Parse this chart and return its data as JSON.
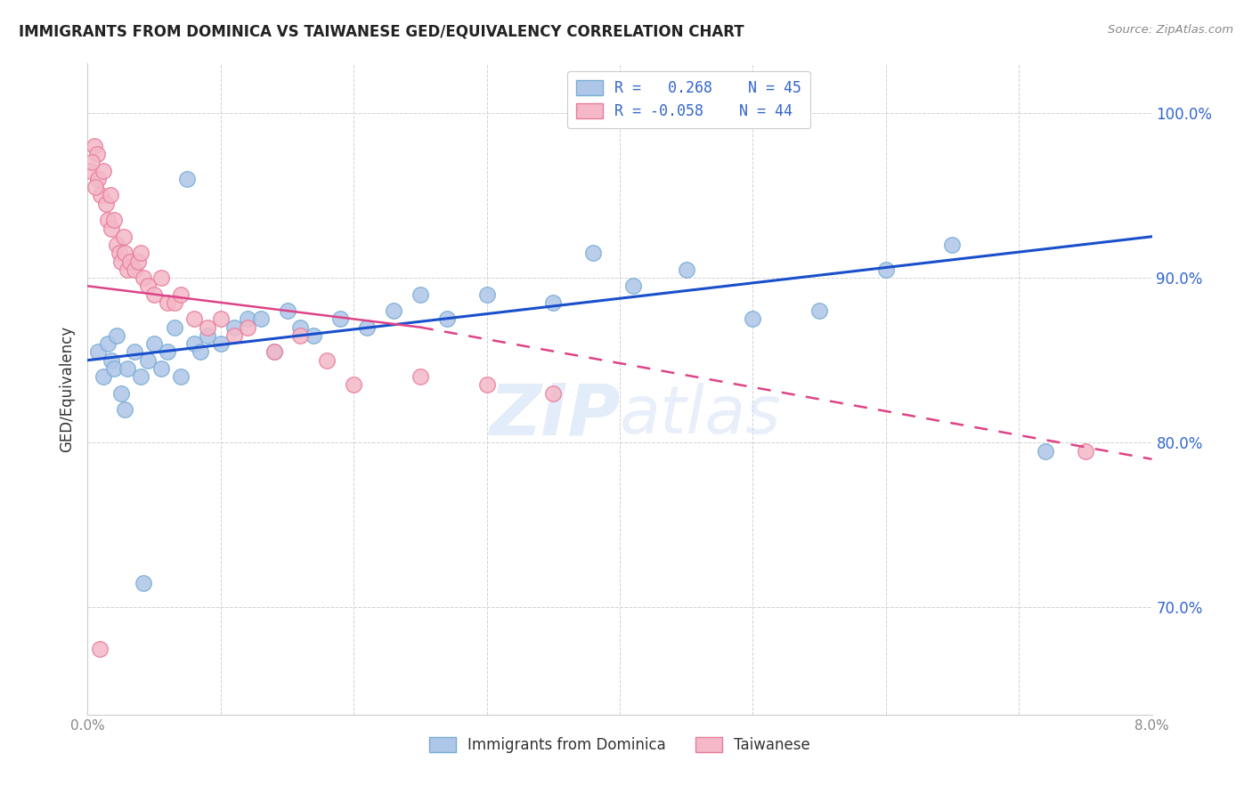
{
  "title": "IMMIGRANTS FROM DOMINICA VS TAIWANESE GED/EQUIVALENCY CORRELATION CHART",
  "source": "Source: ZipAtlas.com",
  "ylabel": "GED/Equivalency",
  "yticks": [
    70.0,
    80.0,
    90.0,
    100.0
  ],
  "ytick_labels": [
    "70.0%",
    "80.0%",
    "90.0%",
    "100.0%"
  ],
  "xlim": [
    0.0,
    8.0
  ],
  "ylim": [
    63.5,
    103.0
  ],
  "legend_labels": [
    "Immigrants from Dominica",
    "Taiwanese"
  ],
  "blue_color": "#aec6e8",
  "pink_color": "#f4b8c8",
  "blue_edge": "#7aadd4",
  "pink_edge": "#e87d9b",
  "trend_blue": "#1a4fcc",
  "trend_pink": "#dd4488",
  "watermark": "ZIPatlas",
  "watermark_color": "#ccddf5",
  "blue_scatter_x": [
    0.08,
    0.12,
    0.15,
    0.18,
    0.2,
    0.22,
    0.25,
    0.28,
    0.3,
    0.35,
    0.4,
    0.45,
    0.5,
    0.55,
    0.6,
    0.65,
    0.7,
    0.8,
    0.85,
    0.9,
    1.0,
    1.1,
    1.2,
    1.3,
    1.4,
    1.5,
    1.6,
    1.7,
    1.9,
    2.1,
    2.3,
    2.5,
    2.7,
    3.0,
    3.5,
    3.8,
    4.1,
    4.5,
    5.0,
    5.5,
    6.0,
    6.5,
    7.2,
    0.42,
    0.75
  ],
  "blue_scatter_y": [
    85.5,
    84.0,
    86.0,
    85.0,
    84.5,
    86.5,
    83.0,
    82.0,
    84.5,
    85.5,
    84.0,
    85.0,
    86.0,
    84.5,
    85.5,
    87.0,
    84.0,
    86.0,
    85.5,
    86.5,
    86.0,
    87.0,
    87.5,
    87.5,
    85.5,
    88.0,
    87.0,
    86.5,
    87.5,
    87.0,
    88.0,
    89.0,
    87.5,
    89.0,
    88.5,
    91.5,
    89.5,
    90.5,
    87.5,
    88.0,
    90.5,
    92.0,
    79.5,
    71.5,
    96.0
  ],
  "pink_scatter_x": [
    0.02,
    0.05,
    0.07,
    0.08,
    0.1,
    0.12,
    0.14,
    0.15,
    0.17,
    0.18,
    0.2,
    0.22,
    0.24,
    0.25,
    0.27,
    0.28,
    0.3,
    0.32,
    0.35,
    0.38,
    0.4,
    0.42,
    0.45,
    0.5,
    0.55,
    0.6,
    0.65,
    0.7,
    0.8,
    0.9,
    1.0,
    1.1,
    1.2,
    1.4,
    1.6,
    1.8,
    2.0,
    2.5,
    3.0,
    3.5,
    7.5,
    0.03,
    0.06,
    0.09
  ],
  "pink_scatter_y": [
    96.5,
    98.0,
    97.5,
    96.0,
    95.0,
    96.5,
    94.5,
    93.5,
    95.0,
    93.0,
    93.5,
    92.0,
    91.5,
    91.0,
    92.5,
    91.5,
    90.5,
    91.0,
    90.5,
    91.0,
    91.5,
    90.0,
    89.5,
    89.0,
    90.0,
    88.5,
    88.5,
    89.0,
    87.5,
    87.0,
    87.5,
    86.5,
    87.0,
    85.5,
    86.5,
    85.0,
    83.5,
    84.0,
    83.5,
    83.0,
    79.5,
    97.0,
    95.5,
    67.5
  ],
  "blue_trend_x": [
    0.0,
    8.0
  ],
  "blue_trend_y": [
    85.0,
    92.5
  ],
  "pink_trend_x": [
    0.0,
    3.2
  ],
  "pink_trend_y": [
    89.5,
    86.0
  ]
}
